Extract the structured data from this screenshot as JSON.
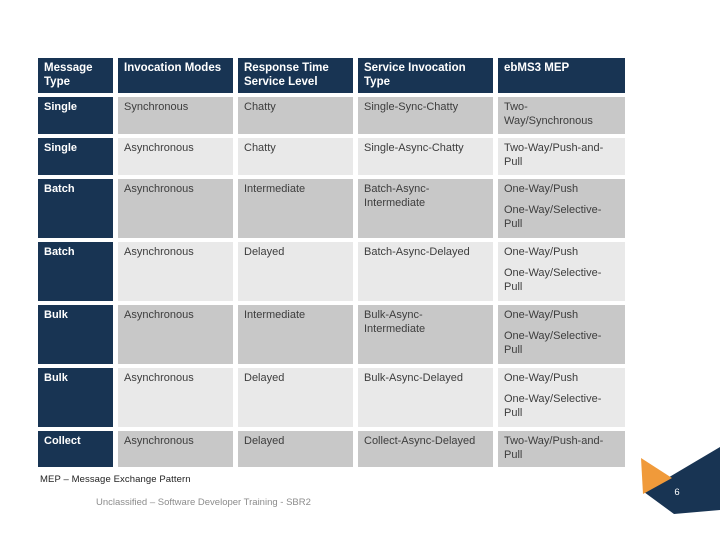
{
  "slide": {
    "footnote": "MEP – Message Exchange Pattern",
    "footer": "Unclassified – Software Developer Training - SBR2",
    "page_number": "6"
  },
  "colors": {
    "navy": "#183453",
    "orange": "#F09A3A",
    "row_dark": "#C8C8C8",
    "row_light": "#E9E9E9"
  },
  "table": {
    "headers": [
      "Message Type",
      "Invocation Modes",
      "Response Time Service Level",
      "Service Invocation Type",
      "ebMS3 MEP"
    ],
    "rows": [
      {
        "message_type": "Single",
        "invocation_mode": "Synchronous",
        "response_time_service_level": "Chatty",
        "service_invocation_type": "Single-Sync-Chatty",
        "ebms3_mep": [
          "Two-Way/Synchronous"
        ]
      },
      {
        "message_type": "Single",
        "invocation_mode": "Asynchronous",
        "response_time_service_level": "Chatty",
        "service_invocation_type": "Single-Async-Chatty",
        "ebms3_mep": [
          "Two-Way/Push-and-Pull"
        ]
      },
      {
        "message_type": "Batch",
        "invocation_mode": "Asynchronous",
        "response_time_service_level": "Intermediate",
        "service_invocation_type": "Batch-Async-Intermediate",
        "ebms3_mep": [
          "One-Way/Push",
          "One-Way/Selective-Pull"
        ]
      },
      {
        "message_type": "Batch",
        "invocation_mode": "Asynchronous",
        "response_time_service_level": "Delayed",
        "service_invocation_type": "Batch-Async-Delayed",
        "ebms3_mep": [
          "One-Way/Push",
          "One-Way/Selective-Pull"
        ]
      },
      {
        "message_type": "Bulk",
        "invocation_mode": "Asynchronous",
        "response_time_service_level": "Intermediate",
        "service_invocation_type": "Bulk-Async-Intermediate",
        "ebms3_mep": [
          "One-Way/Push",
          "One-Way/Selective-Pull"
        ]
      },
      {
        "message_type": "Bulk",
        "invocation_mode": "Asynchronous",
        "response_time_service_level": "Delayed",
        "service_invocation_type": "Bulk-Async-Delayed",
        "ebms3_mep": [
          "One-Way/Push",
          "One-Way/Selective-Pull"
        ]
      },
      {
        "message_type": "Collect",
        "invocation_mode": "Asynchronous",
        "response_time_service_level": "Delayed",
        "service_invocation_type": "Collect-Async-Delayed",
        "ebms3_mep": [
          "Two-Way/Push-and-Pull"
        ]
      }
    ]
  }
}
